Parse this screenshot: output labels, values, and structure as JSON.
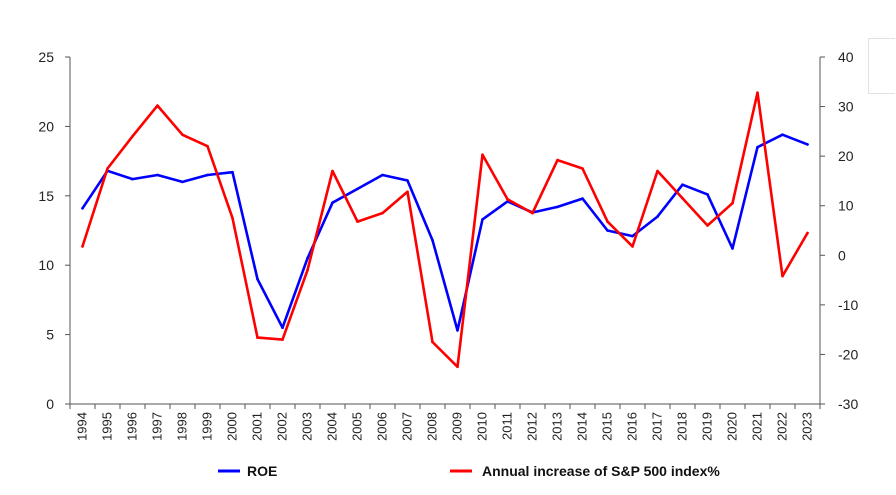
{
  "chart_data": {
    "type": "line",
    "x": [
      "1994",
      "1995",
      "1996",
      "1997",
      "1998",
      "1999",
      "2000",
      "2001",
      "2002",
      "2003",
      "2004",
      "2005",
      "2006",
      "2007",
      "2008",
      "2009",
      "2010",
      "2011",
      "2012",
      "2013",
      "2014",
      "2015",
      "2016",
      "2017",
      "2018",
      "2019",
      "2020",
      "2021",
      "2022",
      "2023"
    ],
    "series": [
      {
        "name": "ROE",
        "axis": "left",
        "color": "#0000ff",
        "values": [
          14.1,
          16.8,
          16.2,
          16.5,
          16.0,
          16.5,
          16.7,
          9.0,
          5.5,
          10.5,
          14.5,
          15.5,
          16.5,
          16.1,
          11.8,
          5.3,
          13.3,
          14.6,
          13.8,
          14.2,
          14.8,
          12.5,
          12.1,
          13.5,
          15.8,
          15.1,
          11.2,
          18.5,
          19.4,
          18.7
        ]
      },
      {
        "name": "Annual increase of S&P 500 index%",
        "axis": "right",
        "color": "#ff0000",
        "values": [
          1.8,
          17.5,
          24.0,
          30.2,
          24.3,
          22.0,
          7.5,
          -16.6,
          -17.0,
          -3.0,
          17.0,
          6.8,
          8.5,
          12.8,
          -17.5,
          -22.5,
          20.3,
          11.3,
          8.5,
          19.2,
          17.5,
          6.8,
          1.8,
          17.0,
          11.5,
          6.0,
          10.5,
          32.8,
          -4.2,
          4.5
        ]
      }
    ],
    "y_left": {
      "ylim": [
        0,
        25
      ],
      "ticks": [
        "0",
        "5",
        "10",
        "15",
        "20",
        "25"
      ],
      "values": [
        0,
        5,
        10,
        15,
        20,
        25
      ]
    },
    "y_right": {
      "ylim": [
        -30,
        40
      ],
      "ticks": [
        "-30",
        "-20",
        "-10",
        "0",
        "10",
        "20",
        "30",
        "40"
      ],
      "values": [
        -30,
        -20,
        -10,
        0,
        10,
        20,
        30,
        40
      ]
    },
    "grid": false,
    "legend": {
      "position": "bottom",
      "items": [
        "ROE",
        "Annual increase of S&P 500 index%"
      ]
    },
    "title": "",
    "xlabel": "",
    "ylabel": ""
  }
}
